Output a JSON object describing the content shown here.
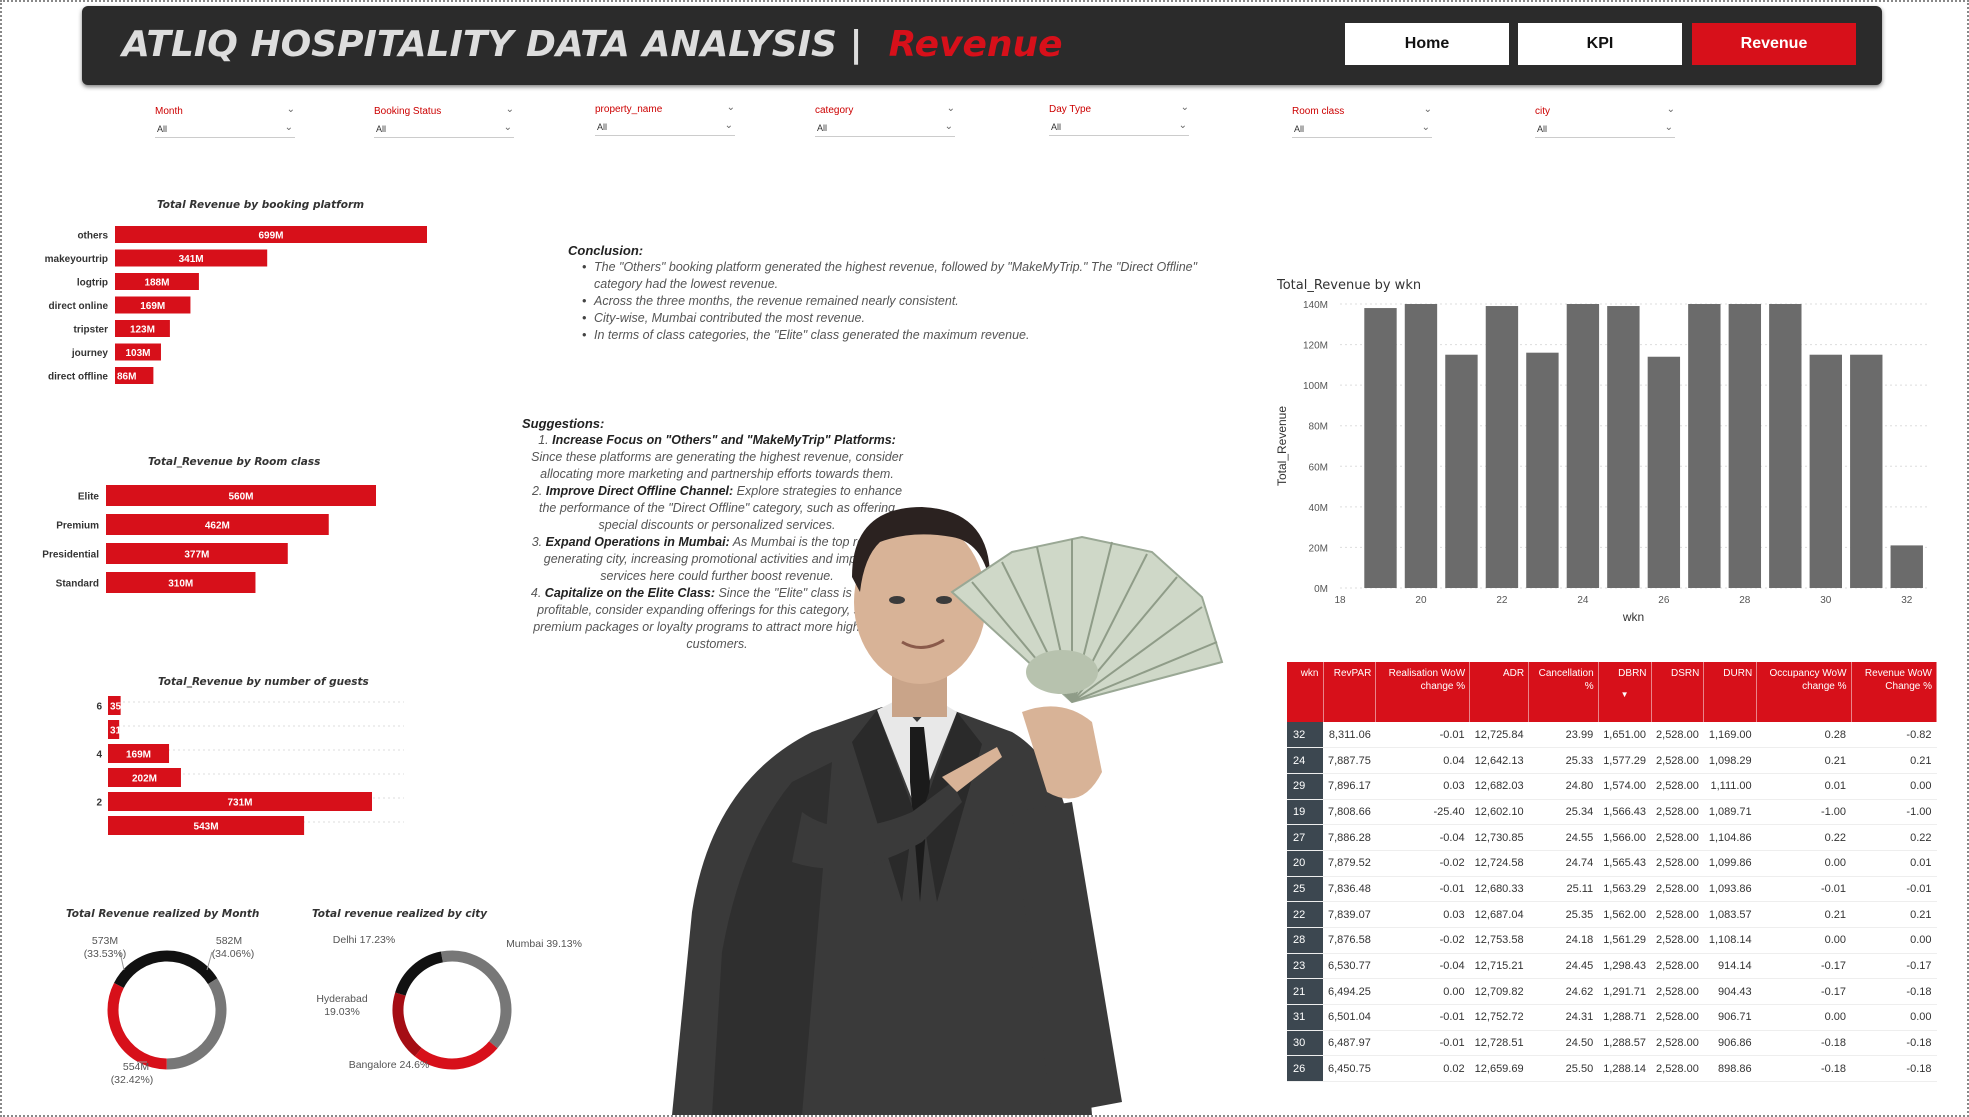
{
  "header": {
    "title": "ATLIQ HOSPITALITY DATA ANALYSIS |",
    "subtitle": "Revenue",
    "nav": [
      "Home",
      "KPI",
      "Revenue"
    ]
  },
  "slicers": [
    {
      "label": "Month",
      "value": "All"
    },
    {
      "label": "Booking Status",
      "value": "All"
    },
    {
      "label": "property_name",
      "value": "All"
    },
    {
      "label": "category",
      "value": "All"
    },
    {
      "label": "Day Type",
      "value": "All"
    },
    {
      "label": "Room class",
      "value": "All"
    },
    {
      "label": "city",
      "value": "All"
    }
  ],
  "conclusion": {
    "heading": "Conclusion:",
    "points": [
      "The \"Others\" booking platform generated the highest revenue, followed by \"MakeMyTrip.\" The \"Direct Offline\" category had the lowest revenue.",
      "Across the three months, the revenue remained nearly consistent.",
      "City-wise, Mumbai contributed the most revenue.",
      "In terms of class categories, the \"Elite\" class generated the maximum revenue."
    ]
  },
  "suggestions": {
    "heading": "Suggestions:",
    "items": [
      {
        "num": "1.",
        "title": "Increase Focus on \"Others\" and \"MakeMyTrip\" Platforms:",
        "text": " Since these platforms are generating the highest revenue, consider allocating more marketing and partnership efforts towards them."
      },
      {
        "num": "2.",
        "title": "Improve Direct Offline Channel:",
        "text": " Explore strategies to enhance the performance of the \"Direct Offline\" category, such as offering special discounts or personalized services."
      },
      {
        "num": "3.",
        "title": "Expand Operations in Mumbai:",
        "text": " As Mumbai is the top revenue-generating city, increasing promotional activities and improving services here could further boost revenue."
      },
      {
        "num": "4.",
        "title": "Capitalize on the Elite Class:",
        "text": " Since the \"Elite\" class is the most profitable, consider expanding offerings for this category, such as premium packages or loyalty programs to attract more high-paying customers."
      }
    ]
  },
  "chart_data": [
    {
      "id": "platform",
      "type": "bar",
      "orientation": "horizontal",
      "title": "Total Revenue by booking platform",
      "categories": [
        "others",
        "makeyourtrip",
        "logtrip",
        "direct online",
        "tripster",
        "journey",
        "direct offline"
      ],
      "values": [
        699,
        341,
        188,
        169,
        123,
        103,
        86
      ],
      "labels": [
        "699M",
        "341M",
        "188M",
        "169M",
        "123M",
        "103M",
        "86M"
      ],
      "color": "#d7101a"
    },
    {
      "id": "roomclass",
      "type": "bar",
      "orientation": "horizontal",
      "title": "Total_Revenue by Room class",
      "categories": [
        "Elite",
        "Premium",
        "Presidential",
        "Standard"
      ],
      "values": [
        560,
        462,
        377,
        310
      ],
      "labels": [
        "560M",
        "462M",
        "377M",
        "310M"
      ],
      "color": "#d7101a"
    },
    {
      "id": "guests",
      "type": "bar",
      "orientation": "horizontal",
      "title": "Total_Revenue by number of guests",
      "categories": [
        "6",
        "",
        "4",
        "",
        "2",
        ""
      ],
      "values": [
        35,
        31,
        169,
        202,
        731,
        543
      ],
      "labels": [
        "35",
        "31",
        "169M",
        "202M",
        "731M",
        "543M"
      ],
      "color": "#d7101a"
    },
    {
      "id": "month",
      "type": "pie",
      "title": "Total Revenue realized by Month",
      "slices": [
        {
          "value": 33.53,
          "label": "573M",
          "pct": "(33.53%)",
          "color": "#111111"
        },
        {
          "value": 34.06,
          "label": "582M",
          "pct": "(34.06%)",
          "color": "#777777"
        },
        {
          "value": 32.42,
          "label": "554M",
          "pct": "(32.42%)",
          "color": "#d7101a"
        }
      ]
    },
    {
      "id": "city",
      "type": "pie",
      "title": "Total revenue realized by city",
      "slices": [
        {
          "name": "Mumbai",
          "value": 39.13,
          "label": "Mumbai 39.13%",
          "color": "#777777"
        },
        {
          "name": "Bangalore",
          "value": 24.6,
          "label": "Bangalore 24.6%",
          "color": "#d7101a"
        },
        {
          "name": "Hyderabad",
          "value": 19.03,
          "label": "Hyderabad 19.03%",
          "color": "#a50d14"
        },
        {
          "name": "Delhi",
          "value": 17.23,
          "label": "Delhi 17.23%",
          "color": "#111111"
        }
      ]
    },
    {
      "id": "wkn",
      "type": "bar",
      "title": "Total_Revenue by wkn",
      "xlabel": "wkn",
      "ylabel": "Total_Revenue",
      "x": [
        19,
        20,
        21,
        22,
        23,
        24,
        25,
        26,
        27,
        28,
        29,
        30,
        31,
        32
      ],
      "values": [
        138,
        140,
        115,
        139,
        116,
        140,
        139,
        114,
        140,
        140,
        140,
        115,
        115,
        21
      ],
      "ylim": [
        0,
        140
      ],
      "yticks": [
        "0M",
        "20M",
        "40M",
        "60M",
        "80M",
        "100M",
        "120M",
        "140M"
      ],
      "xticks": [
        18,
        20,
        22,
        24,
        26,
        28,
        30,
        32
      ],
      "xlim": [
        18,
        32.5
      ],
      "color": "#6b6b6b"
    },
    {
      "id": "kpi_table",
      "type": "table",
      "columns": [
        "wkn",
        "RevPAR",
        "Realisation WoW change %",
        "ADR",
        "Cancellation %",
        "DBRN",
        "DSRN",
        "DURN",
        "Occupancy WoW change %",
        "Revenue WoW Change %"
      ],
      "rows": [
        [
          "32",
          "8,311.06",
          "-0.01",
          "12,725.84",
          "23.99",
          "1,651.00",
          "2,528.00",
          "1,169.00",
          "0.28",
          "-0.82"
        ],
        [
          "24",
          "7,887.75",
          "0.04",
          "12,642.13",
          "25.33",
          "1,577.29",
          "2,528.00",
          "1,098.29",
          "0.21",
          "0.21"
        ],
        [
          "29",
          "7,896.17",
          "0.03",
          "12,682.03",
          "24.80",
          "1,574.00",
          "2,528.00",
          "1,111.00",
          "0.01",
          "0.00"
        ],
        [
          "19",
          "7,808.66",
          "-25.40",
          "12,602.10",
          "25.34",
          "1,566.43",
          "2,528.00",
          "1,089.71",
          "-1.00",
          "-1.00"
        ],
        [
          "27",
          "7,886.28",
          "-0.04",
          "12,730.85",
          "24.55",
          "1,566.00",
          "2,528.00",
          "1,104.86",
          "0.22",
          "0.22"
        ],
        [
          "20",
          "7,879.52",
          "-0.02",
          "12,724.58",
          "24.74",
          "1,565.43",
          "2,528.00",
          "1,099.86",
          "0.00",
          "0.01"
        ],
        [
          "25",
          "7,836.48",
          "-0.01",
          "12,680.33",
          "25.11",
          "1,563.29",
          "2,528.00",
          "1,093.86",
          "-0.01",
          "-0.01"
        ],
        [
          "22",
          "7,839.07",
          "0.03",
          "12,687.04",
          "25.35",
          "1,562.00",
          "2,528.00",
          "1,083.57",
          "0.21",
          "0.21"
        ],
        [
          "28",
          "7,876.58",
          "-0.02",
          "12,753.58",
          "24.18",
          "1,561.29",
          "2,528.00",
          "1,108.14",
          "0.00",
          "0.00"
        ],
        [
          "23",
          "6,530.77",
          "-0.04",
          "12,715.21",
          "24.45",
          "1,298.43",
          "2,528.00",
          "914.14",
          "-0.17",
          "-0.17"
        ],
        [
          "21",
          "6,494.25",
          "0.00",
          "12,709.82",
          "24.62",
          "1,291.71",
          "2,528.00",
          "904.43",
          "-0.17",
          "-0.18"
        ],
        [
          "31",
          "6,501.04",
          "-0.01",
          "12,752.72",
          "24.31",
          "1,288.71",
          "2,528.00",
          "906.71",
          "0.00",
          "0.00"
        ],
        [
          "30",
          "6,487.97",
          "-0.01",
          "12,728.51",
          "24.50",
          "1,288.57",
          "2,528.00",
          "906.86",
          "-0.18",
          "-0.18"
        ],
        [
          "26",
          "6,450.75",
          "0.02",
          "12,659.69",
          "25.50",
          "1,288.14",
          "2,528.00",
          "898.86",
          "-0.18",
          "-0.18"
        ]
      ]
    }
  ]
}
